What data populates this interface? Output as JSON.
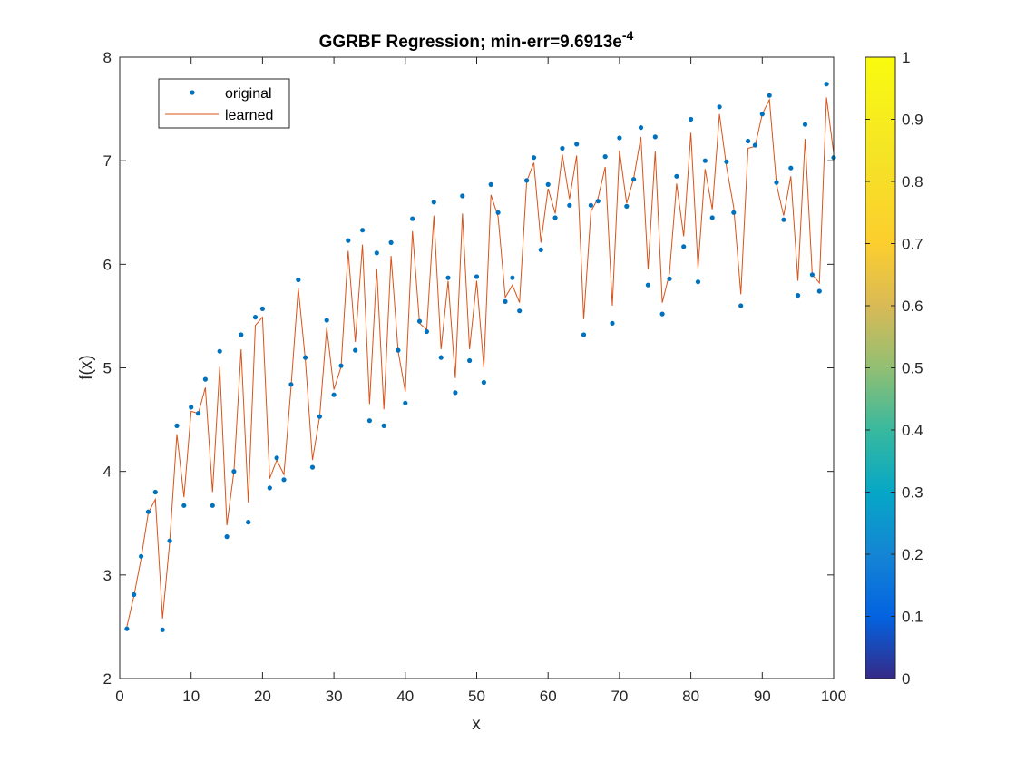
{
  "chart_data": {
    "type": "scatter",
    "title": {
      "main": "GGRBF Regression; min-err=9.6913e",
      "superscript": "-4"
    },
    "xlabel": "x",
    "ylabel": "f(x)",
    "xlim": [
      0,
      100
    ],
    "ylim": [
      2,
      8
    ],
    "xticks": [
      "0",
      "10",
      "20",
      "30",
      "40",
      "50",
      "60",
      "70",
      "80",
      "90",
      "100"
    ],
    "yticks": [
      "2",
      "3",
      "4",
      "5",
      "6",
      "7",
      "8"
    ],
    "grid": false,
    "legend_position": "top-left",
    "colorbar": {
      "range": [
        0,
        1
      ],
      "ticks": [
        "0",
        "0.1",
        "0.2",
        "0.3",
        "0.4",
        "0.5",
        "0.6",
        "0.7",
        "0.8",
        "0.9",
        "1"
      ],
      "colormap": "parula"
    },
    "x": [
      1,
      2,
      3,
      4,
      5,
      6,
      7,
      8,
      9,
      10,
      11,
      12,
      13,
      14,
      15,
      16,
      17,
      18,
      19,
      20,
      21,
      22,
      23,
      24,
      25,
      26,
      27,
      28,
      29,
      30,
      31,
      32,
      33,
      34,
      35,
      36,
      37,
      38,
      39,
      40,
      41,
      42,
      43,
      44,
      45,
      46,
      47,
      48,
      49,
      50,
      51,
      52,
      53,
      54,
      55,
      56,
      57,
      58,
      59,
      60,
      61,
      62,
      63,
      64,
      65,
      66,
      67,
      68,
      69,
      70,
      71,
      72,
      73,
      74,
      75,
      76,
      77,
      78,
      79,
      80,
      81,
      82,
      83,
      84,
      85,
      86,
      87,
      88,
      89,
      90,
      91,
      92,
      93,
      94,
      95,
      96,
      97,
      98,
      99,
      100
    ],
    "series": [
      {
        "name": "original",
        "style": "points",
        "color": "#0072BD",
        "values": [
          2.48,
          2.81,
          3.18,
          3.61,
          3.8,
          2.47,
          3.33,
          4.44,
          3.67,
          4.62,
          4.56,
          4.89,
          3.67,
          5.16,
          3.37,
          4.0,
          5.32,
          3.51,
          5.49,
          5.57,
          3.84,
          4.13,
          3.92,
          4.84,
          5.85,
          5.1,
          4.04,
          4.53,
          5.46,
          4.74,
          5.02,
          6.23,
          5.17,
          6.33,
          4.49,
          6.11,
          4.44,
          6.21,
          5.17,
          4.66,
          6.44,
          5.45,
          5.35,
          6.6,
          5.1,
          5.87,
          4.76,
          6.66,
          5.07,
          5.88,
          4.86,
          6.77,
          6.5,
          5.64,
          5.87,
          5.55,
          6.81,
          7.03,
          6.14,
          6.77,
          6.45,
          7.12,
          6.57,
          7.16,
          5.32,
          6.57,
          6.61,
          7.04,
          5.43,
          7.22,
          6.56,
          6.82,
          7.32,
          5.8,
          7.23,
          5.52,
          5.86,
          6.85,
          6.17,
          7.4,
          5.83,
          7.0,
          6.45,
          7.52,
          6.99,
          6.5,
          5.6,
          7.19,
          7.15,
          7.45,
          7.63,
          6.79,
          6.43,
          6.93,
          5.7,
          7.35,
          5.9,
          5.74,
          7.74,
          7.03
        ]
      },
      {
        "name": "learned",
        "style": "line",
        "color": "#D95319",
        "values": [
          2.5,
          2.8,
          3.16,
          3.6,
          3.73,
          2.58,
          3.32,
          4.36,
          3.75,
          4.58,
          4.56,
          4.81,
          3.8,
          5.01,
          3.48,
          4.0,
          5.18,
          3.7,
          5.41,
          5.49,
          3.93,
          4.11,
          3.97,
          4.82,
          5.77,
          5.08,
          4.11,
          4.53,
          5.39,
          4.79,
          5.01,
          6.13,
          5.25,
          6.19,
          4.65,
          5.96,
          4.6,
          6.08,
          5.16,
          4.77,
          6.32,
          5.43,
          5.37,
          6.47,
          5.18,
          5.84,
          4.9,
          6.49,
          5.18,
          5.84,
          5.0,
          6.67,
          6.46,
          5.68,
          5.8,
          5.63,
          6.8,
          6.98,
          6.21,
          6.73,
          6.49,
          7.06,
          6.63,
          7.05,
          5.47,
          6.51,
          6.64,
          6.94,
          5.6,
          7.1,
          6.59,
          6.83,
          7.23,
          5.95,
          7.09,
          5.63,
          5.91,
          6.78,
          6.27,
          7.27,
          5.96,
          6.92,
          6.53,
          7.45,
          6.94,
          6.55,
          5.71,
          7.12,
          7.14,
          7.45,
          7.59,
          6.77,
          6.47,
          6.85,
          5.84,
          7.21,
          5.9,
          5.82,
          7.61,
          7.07
        ]
      }
    ]
  }
}
